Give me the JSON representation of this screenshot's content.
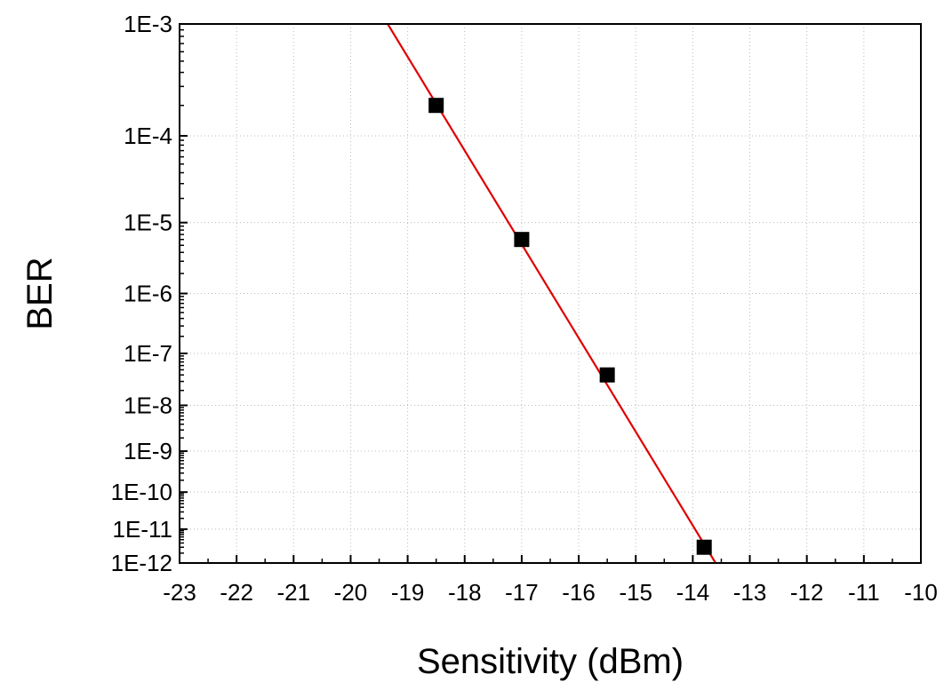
{
  "chart_data": {
    "type": "scatter",
    "xlabel": "Sensitivity (dBm)",
    "ylabel": "BER",
    "xlim": [
      -23,
      -10
    ],
    "ylim": [
      1e-12,
      0.001
    ],
    "x_scale": "linear",
    "y_scale": "ber (log(-log10 BER))",
    "x_ticks": [
      "-23",
      "-22",
      "-21",
      "-20",
      "-19",
      "-18",
      "-17",
      "-16",
      "-15",
      "-14",
      "-13",
      "-12",
      "-11",
      "-10"
    ],
    "y_ticks": [
      {
        "value": 0.001,
        "label": "1E-3"
      },
      {
        "value": 0.0001,
        "label": "1E-4"
      },
      {
        "value": 1e-05,
        "label": "1E-5"
      },
      {
        "value": 1e-06,
        "label": "1E-6"
      },
      {
        "value": 1e-07,
        "label": "1E-7"
      },
      {
        "value": 1e-08,
        "label": "1E-8"
      },
      {
        "value": 1e-09,
        "label": "1E-9"
      },
      {
        "value": 1e-10,
        "label": "1E-10"
      },
      {
        "value": 1e-11,
        "label": "1E-11"
      },
      {
        "value": 1e-12,
        "label": "1E-12"
      }
    ],
    "grid": true,
    "series": [
      {
        "type": "scatter",
        "marker": "square",
        "color": "#000000",
        "points": [
          {
            "x": -18.5,
            "y": 0.0002
          },
          {
            "x": -17.0,
            "y": 6e-06
          },
          {
            "x": -15.5,
            "y": 4e-08
          },
          {
            "x": -13.8,
            "y": 3e-12
          }
        ]
      },
      {
        "type": "line",
        "color": "#e00000",
        "points": [
          {
            "x": -19.35,
            "y": 0.001
          },
          {
            "x": -13.6,
            "y": 1e-12
          }
        ]
      }
    ]
  }
}
